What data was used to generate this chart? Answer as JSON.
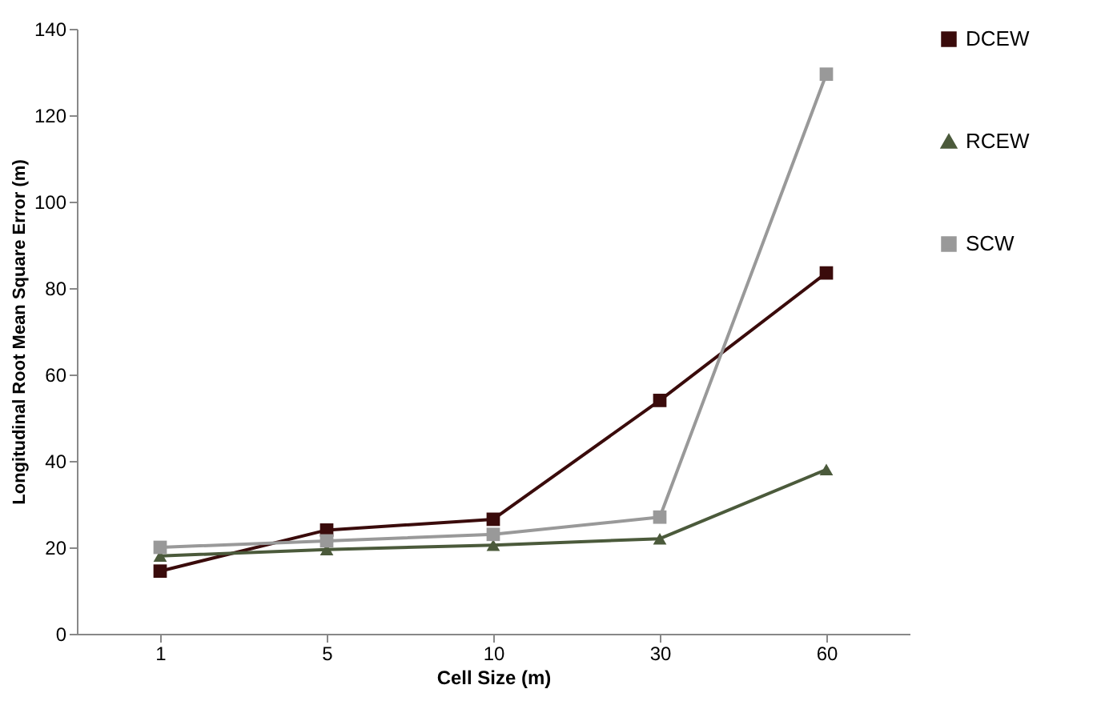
{
  "chart_data": {
    "type": "line",
    "xlabel": "Cell Size (m)",
    "ylabel": "Longitudinal Root Mean Square Error (m)",
    "categories": [
      "1",
      "5",
      "10",
      "30",
      "60"
    ],
    "ylim": [
      0,
      140
    ],
    "yticks": [
      0,
      20,
      40,
      60,
      80,
      100,
      120,
      140
    ],
    "legend": "right",
    "line_style": "solid",
    "series": [
      {
        "name": "DCEW",
        "color": "#3a0b0b",
        "marker": "square",
        "values": [
          14.5,
          24,
          26.5,
          54,
          83.5
        ]
      },
      {
        "name": "RCEW",
        "color": "#4b5a3b",
        "marker": "triangle",
        "values": [
          18,
          19.5,
          20.5,
          22,
          38
        ]
      },
      {
        "name": "SCW",
        "color": "#999999",
        "marker": "square",
        "values": [
          20,
          21.5,
          23,
          27,
          129.5
        ]
      }
    ]
  }
}
